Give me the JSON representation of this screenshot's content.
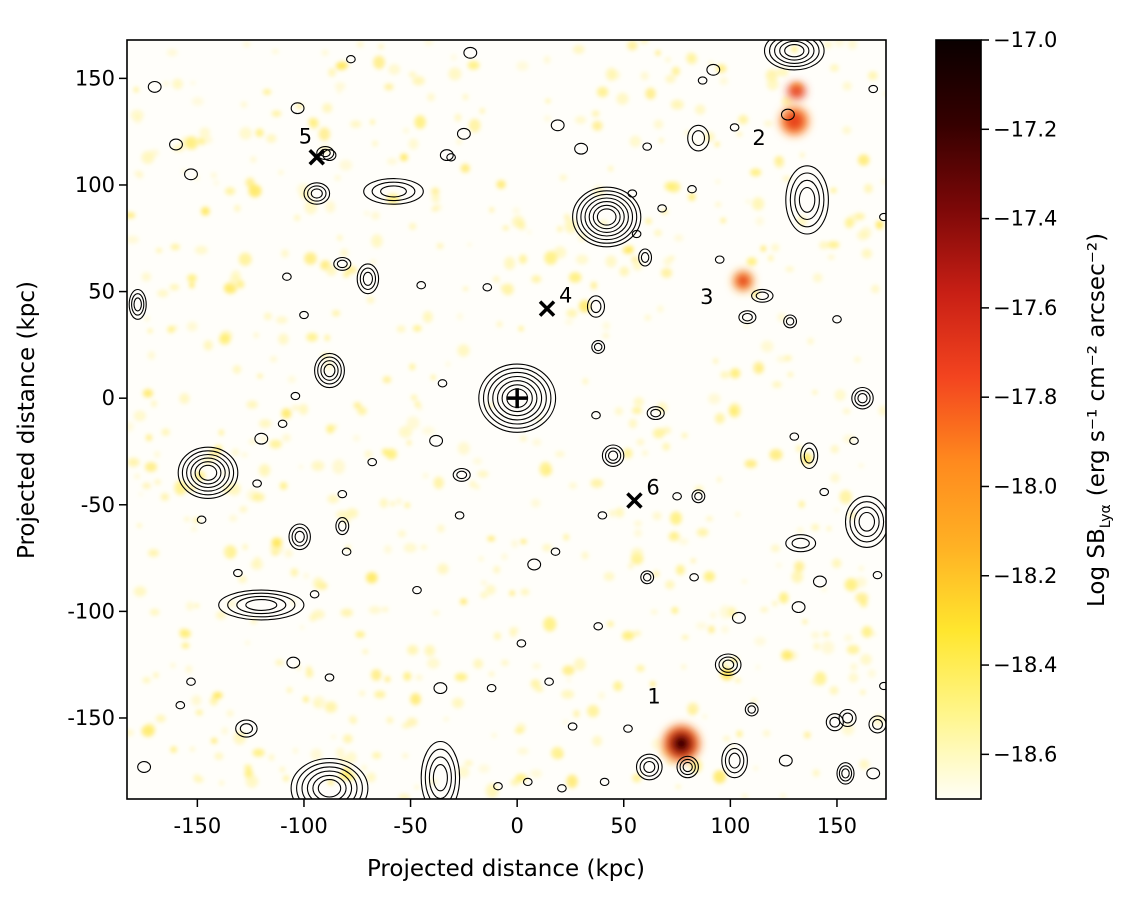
{
  "chart_data": {
    "type": "heatmap",
    "title": "",
    "xlabel": "Projected distance (kpc)",
    "ylabel": "Projected distance (kpc)",
    "xlim": [
      -183,
      173
    ],
    "ylim": [
      -188,
      168
    ],
    "xticks": [
      -150,
      -100,
      -50,
      0,
      50,
      100,
      150
    ],
    "yticks": [
      -150,
      -100,
      -50,
      0,
      50,
      100,
      150
    ],
    "xtick_labels": [
      "-150",
      "-100",
      "-50",
      "0",
      "50",
      "100",
      "150"
    ],
    "ytick_labels": [
      "-150",
      "-100",
      "-50",
      "0",
      "50",
      "100",
      "150"
    ],
    "grid": false,
    "colormap": "afmhot_r",
    "colorbar": {
      "label_main": "Log SB",
      "label_sub": "Lyα",
      "label_units": "(erg s⁻¹ cm⁻² arcsec⁻²)",
      "range": [
        -18.7,
        -17.0
      ],
      "ticks": [
        -17.0,
        -17.2,
        -17.4,
        -17.6,
        -17.8,
        -18.0,
        -18.2,
        -18.4,
        -18.6
      ],
      "tick_labels": [
        "−17.0",
        "−17.2",
        "−17.4",
        "−17.6",
        "−17.8",
        "−18.0",
        "−18.2",
        "−18.4",
        "−18.6"
      ],
      "colors": [
        "#fffef6",
        "#fff68c",
        "#ffe62e",
        "#ffb124",
        "#ff8a1e",
        "#f3441f",
        "#c81f15",
        "#7c0808",
        "#350000",
        "#0a0000"
      ]
    },
    "center_marker": {
      "symbol": "+",
      "x": 0,
      "y": 0
    },
    "sources": [
      {
        "label": "1",
        "x": 77,
        "y": -162,
        "marker": "none",
        "peak_log_sb": -17.05
      },
      {
        "label": "2",
        "x": 130,
        "y": 130,
        "marker": "none",
        "peak_log_sb": -17.75
      },
      {
        "label": "3",
        "x": 106,
        "y": 55,
        "marker": "none",
        "peak_log_sb": -17.8
      },
      {
        "label": "4",
        "x": 14,
        "y": 42,
        "marker": "x"
      },
      {
        "label": "5",
        "x": -94,
        "y": 113,
        "marker": "x"
      },
      {
        "label": "6",
        "x": 55,
        "y": -48,
        "marker": "x"
      }
    ],
    "contour_objects": [
      {
        "x": 0,
        "y": 0,
        "rx": 18,
        "ry": 16,
        "levels": 7
      },
      {
        "x": 42,
        "y": 85,
        "rx": 16,
        "ry": 14,
        "levels": 7
      },
      {
        "x": -145,
        "y": -35,
        "rx": 14,
        "ry": 12,
        "levels": 6
      },
      {
        "x": -120,
        "y": -97,
        "rx": 20,
        "ry": 7,
        "levels": 4
      },
      {
        "x": -88,
        "y": 13,
        "rx": 7,
        "ry": 8,
        "levels": 4
      },
      {
        "x": -58,
        "y": 97,
        "rx": 14,
        "ry": 6,
        "levels": 3
      },
      {
        "x": 136,
        "y": 93,
        "rx": 10,
        "ry": 16,
        "levels": 4
      },
      {
        "x": 130,
        "y": 163,
        "rx": 14,
        "ry": 9,
        "levels": 5
      },
      {
        "x": -88,
        "y": -183,
        "rx": 18,
        "ry": 14,
        "levels": 6
      },
      {
        "x": -36,
        "y": -178,
        "rx": 9,
        "ry": 17,
        "levels": 4
      },
      {
        "x": 164,
        "y": -58,
        "rx": 10,
        "ry": 12,
        "levels": 4
      },
      {
        "x": -94,
        "y": 96,
        "rx": 6,
        "ry": 5,
        "levels": 3
      },
      {
        "x": 102,
        "y": -170,
        "rx": 6,
        "ry": 8,
        "levels": 3
      },
      {
        "x": 99,
        "y": -125,
        "rx": 6,
        "ry": 5,
        "levels": 3
      },
      {
        "x": 62,
        "y": -173,
        "rx": 6,
        "ry": 6,
        "levels": 3
      },
      {
        "x": 80,
        "y": -173,
        "rx": 5,
        "ry": 5,
        "levels": 3
      },
      {
        "x": -102,
        "y": -65,
        "rx": 5,
        "ry": 6,
        "levels": 3
      },
      {
        "x": 45,
        "y": -27,
        "rx": 5,
        "ry": 5,
        "levels": 3
      },
      {
        "x": 37,
        "y": 43,
        "rx": 4,
        "ry": 5,
        "levels": 2
      },
      {
        "x": 133,
        "y": -68,
        "rx": 7,
        "ry": 4,
        "levels": 2
      },
      {
        "x": 115,
        "y": 48,
        "rx": 5,
        "ry": 3,
        "levels": 2
      },
      {
        "x": 162,
        "y": 0,
        "rx": 5,
        "ry": 5,
        "levels": 3
      },
      {
        "x": 154,
        "y": -176,
        "rx": 4,
        "ry": 5,
        "levels": 3
      },
      {
        "x": 155,
        "y": -150,
        "rx": 4,
        "ry": 4,
        "levels": 2
      },
      {
        "x": -178,
        "y": 44,
        "rx": 4,
        "ry": 7,
        "levels": 3
      },
      {
        "x": -70,
        "y": 56,
        "rx": 5,
        "ry": 7,
        "levels": 3
      },
      {
        "x": -82,
        "y": 63,
        "rx": 4,
        "ry": 3,
        "levels": 2
      },
      {
        "x": -127,
        "y": -155,
        "rx": 5,
        "ry": 4,
        "levels": 2
      },
      {
        "x": 85,
        "y": 122,
        "rx": 5,
        "ry": 6,
        "levels": 2
      },
      {
        "x": -90,
        "y": 115,
        "rx": 4,
        "ry": 3,
        "levels": 2
      },
      {
        "x": 60,
        "y": 66,
        "rx": 3,
        "ry": 4,
        "levels": 2
      },
      {
        "x": 38,
        "y": 24,
        "rx": 3,
        "ry": 3,
        "levels": 2
      },
      {
        "x": 110,
        "y": -146,
        "rx": 3,
        "ry": 3,
        "levels": 2
      },
      {
        "x": 137,
        "y": -27,
        "rx": 4,
        "ry": 6,
        "levels": 2
      },
      {
        "x": 149,
        "y": -152,
        "rx": 4,
        "ry": 4,
        "levels": 2
      },
      {
        "x": 169,
        "y": -153,
        "rx": 4,
        "ry": 4,
        "levels": 2
      },
      {
        "x": 61,
        "y": -84,
        "rx": 3,
        "ry": 3,
        "levels": 2
      },
      {
        "x": 85,
        "y": -46,
        "rx": 3,
        "ry": 3,
        "levels": 2
      },
      {
        "x": 128,
        "y": 36,
        "rx": 3,
        "ry": 3,
        "levels": 2
      },
      {
        "x": 108,
        "y": 38,
        "rx": 4,
        "ry": 3,
        "levels": 2
      },
      {
        "x": 65,
        "y": -7,
        "rx": 4,
        "ry": 3,
        "levels": 2
      },
      {
        "x": -82,
        "y": -60,
        "rx": 3,
        "ry": 4,
        "levels": 2
      },
      {
        "x": -26,
        "y": -36,
        "rx": 4,
        "ry": 3,
        "levels": 2
      }
    ],
    "small_contours": [
      [
        -170,
        146,
        3
      ],
      [
        -160,
        119,
        3
      ],
      [
        -153,
        105,
        3
      ],
      [
        -131,
        -82,
        2
      ],
      [
        -103,
        136,
        3
      ],
      [
        -88,
        114,
        3
      ],
      [
        -78,
        159,
        2
      ],
      [
        -33,
        114,
        3
      ],
      [
        -25,
        124,
        3
      ],
      [
        -22,
        162,
        3
      ],
      [
        -82,
        -45,
        2
      ],
      [
        -120,
        -19,
        3
      ],
      [
        -110,
        -12,
        2
      ],
      [
        -104,
        1,
        2
      ],
      [
        -68,
        -30,
        2
      ],
      [
        -38,
        -20,
        3
      ],
      [
        -27,
        -55,
        2
      ],
      [
        -36,
        -136,
        3
      ],
      [
        -105,
        -124,
        3
      ],
      [
        -153,
        -133,
        2
      ],
      [
        -158,
        -144,
        2
      ],
      [
        -175,
        -173,
        3
      ],
      [
        -148,
        -57,
        2
      ],
      [
        -122,
        -40,
        2
      ],
      [
        -95,
        -92,
        2
      ],
      [
        -108,
        57,
        2
      ],
      [
        -100,
        39,
        2
      ],
      [
        -31,
        113,
        2
      ],
      [
        -45,
        53,
        2
      ],
      [
        -14,
        52,
        2
      ],
      [
        19,
        128,
        3
      ],
      [
        30,
        117,
        3
      ],
      [
        61,
        118,
        2
      ],
      [
        54,
        96,
        2
      ],
      [
        56,
        77,
        2
      ],
      [
        68,
        89,
        2
      ],
      [
        82,
        98,
        2
      ],
      [
        95,
        65,
        2
      ],
      [
        92,
        154,
        3
      ],
      [
        87,
        149,
        2
      ],
      [
        102,
        127,
        2
      ],
      [
        127,
        133,
        3
      ],
      [
        167,
        145,
        2
      ],
      [
        172,
        85,
        2
      ],
      [
        150,
        37,
        2
      ],
      [
        130,
        -18,
        2
      ],
      [
        144,
        -44,
        2
      ],
      [
        158,
        -20,
        2
      ],
      [
        169,
        -83,
        2
      ],
      [
        142,
        -86,
        3
      ],
      [
        132,
        -98,
        3
      ],
      [
        126,
        -170,
        3
      ],
      [
        167,
        -176,
        3
      ],
      [
        172,
        -135,
        2
      ],
      [
        104,
        -103,
        3
      ],
      [
        83,
        -84,
        2
      ],
      [
        75,
        -46,
        2
      ],
      [
        40,
        -55,
        2
      ],
      [
        18,
        -72,
        2
      ],
      [
        8,
        -78,
        3
      ],
      [
        38,
        -107,
        2
      ],
      [
        2,
        -115,
        2
      ],
      [
        -12,
        -136,
        2
      ],
      [
        15,
        -133,
        2
      ],
      [
        -47,
        -90,
        2
      ],
      [
        -88,
        -131,
        2
      ],
      [
        -80,
        -72,
        2
      ],
      [
        5,
        -180,
        2
      ],
      [
        -9,
        -182,
        2
      ],
      [
        21,
        -183,
        2
      ],
      [
        41,
        -180,
        2
      ],
      [
        52,
        -155,
        2
      ],
      [
        26,
        -154,
        2
      ],
      [
        37,
        -8,
        2
      ],
      [
        -35,
        7,
        2
      ]
    ]
  }
}
